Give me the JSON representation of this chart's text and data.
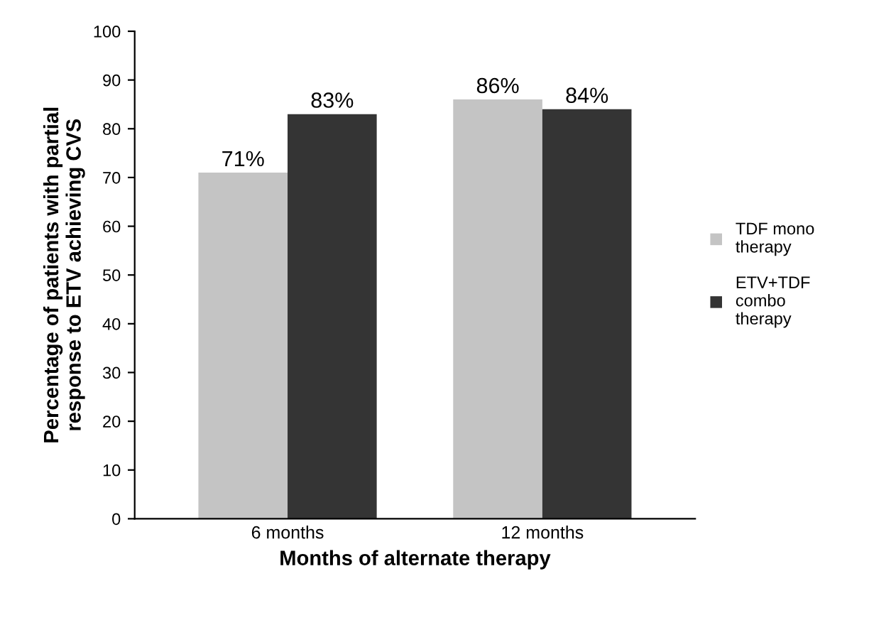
{
  "chart_data": {
    "type": "bar",
    "xlabel": "Months of alternate therapy",
    "ylabel": "Percentage of patients with partial\nresponse to ETV achieving CVS",
    "categories": [
      "6 months",
      "12 months"
    ],
    "series": [
      {
        "name": "TDF mono\ntherapy",
        "color": "#c4c4c4",
        "values": [
          71,
          86
        ],
        "value_labels": [
          "71%",
          "86%"
        ]
      },
      {
        "name": "ETV+TDF\ncombo\ntherapy",
        "color": "#343434",
        "values": [
          83,
          84
        ],
        "value_labels": [
          "83%",
          "84%"
        ]
      }
    ],
    "ylim": [
      0,
      100
    ],
    "yticks": [
      0,
      10,
      20,
      30,
      40,
      50,
      60,
      70,
      80,
      90,
      100
    ],
    "grid": false,
    "legend": "right"
  }
}
